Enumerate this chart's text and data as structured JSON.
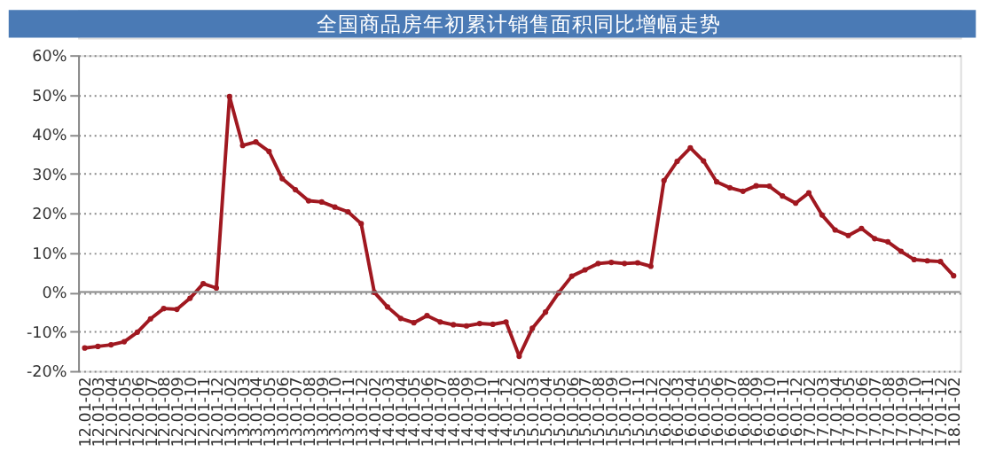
{
  "chart_data": {
    "type": "line",
    "title": "全国商品房年初累计销售面积同比增幅走势",
    "categories": [
      "12.01-02",
      "12.01-03",
      "12.01-04",
      "12.01-05",
      "12.01-06",
      "12.01-07",
      "12.01-08",
      "12.01-09",
      "12.01-10",
      "12.01-11",
      "12.01-12",
      "13.01-02",
      "13.01-03",
      "13.01-04",
      "13.01-05",
      "13.01-06",
      "13.01-07",
      "13.01-08",
      "13.01-09",
      "13.01-10",
      "13.01-11",
      "13.01-12",
      "14.01-02",
      "14.01-03",
      "14.01-04",
      "14.01-05",
      "14.01-06",
      "14.01-07",
      "14.01-08",
      "14.01-09",
      "14.01-10",
      "14.01-11",
      "14.01-12",
      "15.01-02",
      "15.01-03",
      "15.01-04",
      "15.01-05",
      "15.01-06",
      "15.01-07",
      "15.01-08",
      "15.01-09",
      "15.01-10",
      "15.01-11",
      "15.01-12",
      "16.01-02",
      "16.01-03",
      "16.01-04",
      "16.01-05",
      "16.01-06",
      "16.01-07",
      "16.01-08",
      "16.01-09",
      "16.01-10",
      "16.01-11",
      "16.01-12",
      "17.01-02",
      "17.01-03",
      "17.01-04",
      "17.01-05",
      "17.01-06",
      "17.01-07",
      "17.01-08",
      "17.01-09",
      "17.01-10",
      "17.01-11",
      "17.01-12",
      "18.01-02"
    ],
    "series": [
      {
        "color": "#a01820",
        "values": [
          -14.2,
          -13.8,
          -13.4,
          -12.6,
          -10.2,
          -6.8,
          -4.2,
          -4.4,
          -1.6,
          2.1,
          1.0,
          49.5,
          37.1,
          38.0,
          35.6,
          28.7,
          25.9,
          23.1,
          22.8,
          21.5,
          20.3,
          17.3,
          -0.1,
          -3.8,
          -6.7,
          -7.8,
          -6.0,
          -7.6,
          -8.3,
          -8.6,
          -8.0,
          -8.2,
          -7.6,
          -16.3,
          -9.2,
          -5.1,
          -0.2,
          4.0,
          5.6,
          7.2,
          7.5,
          7.2,
          7.4,
          6.5,
          28.2,
          33.1,
          36.5,
          33.2,
          27.9,
          26.4,
          25.5,
          26.9,
          26.8,
          24.3,
          22.5,
          25.1,
          19.5,
          15.7,
          14.3,
          16.1,
          13.5,
          12.7,
          10.3,
          8.2,
          7.9,
          7.7,
          4.1
        ]
      }
    ],
    "ylim": [
      -20,
      60
    ],
    "yticks": [
      {
        "value": -20,
        "label": "-20%"
      },
      {
        "value": -10,
        "label": "-10%"
      },
      {
        "value": 0,
        "label": "0%"
      },
      {
        "value": 10,
        "label": "10%"
      },
      {
        "value": 20,
        "label": "20%"
      },
      {
        "value": 30,
        "label": "30%"
      },
      {
        "value": 40,
        "label": "40%"
      },
      {
        "value": 50,
        "label": "50%"
      },
      {
        "value": 60,
        "label": "60%"
      }
    ],
    "grid": "y",
    "marker": "circle",
    "line_style": "solid"
  }
}
